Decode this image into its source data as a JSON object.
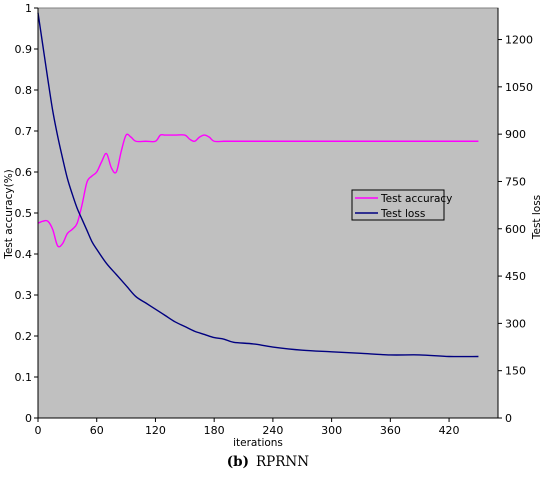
{
  "chart_data": {
    "type": "line",
    "title": "",
    "xlabel": "iterations",
    "ylabel": "Test accuracy(%)",
    "y2label": "Test loss",
    "xlim": [
      0,
      470
    ],
    "ylim": [
      0,
      1.0
    ],
    "y2lim": [
      0,
      1300
    ],
    "xticks": [
      0,
      60,
      120,
      180,
      240,
      300,
      360,
      420
    ],
    "yticks": [
      0,
      0.1,
      0.2,
      0.3,
      0.4,
      0.5,
      0.6,
      0.7,
      0.8,
      0.9,
      1
    ],
    "y2ticks": [
      0,
      150,
      300,
      450,
      600,
      750,
      900,
      1050,
      1200
    ],
    "xtick_labels": [
      "0",
      "60",
      "120",
      "180",
      "240",
      "300",
      "360",
      "420"
    ],
    "ytick_labels": [
      "0",
      "0.1",
      "0.2",
      "0.3",
      "0.4",
      "0.5",
      "0.6",
      "0.7",
      "0.8",
      "0.9",
      "1"
    ],
    "y2tick_labels": [
      "0",
      "150",
      "300",
      "450",
      "600",
      "750",
      "900",
      "1050",
      "1200"
    ],
    "grid": false,
    "background_color": "#c0c0c0",
    "legend_position": "right-middle",
    "series": [
      {
        "name": "Test accuracy",
        "axis": "left",
        "color": "#ff00ff",
        "x": [
          0,
          5,
          10,
          15,
          20,
          25,
          30,
          35,
          40,
          45,
          50,
          55,
          60,
          65,
          70,
          75,
          80,
          85,
          90,
          95,
          100,
          110,
          120,
          125,
          130,
          140,
          150,
          155,
          160,
          165,
          170,
          175,
          180,
          190,
          200,
          250,
          300,
          350,
          400,
          450
        ],
        "y": [
          0.475,
          0.48,
          0.48,
          0.46,
          0.42,
          0.425,
          0.45,
          0.46,
          0.475,
          0.52,
          0.575,
          0.59,
          0.6,
          0.625,
          0.645,
          0.61,
          0.6,
          0.65,
          0.69,
          0.685,
          0.675,
          0.675,
          0.675,
          0.69,
          0.69,
          0.69,
          0.69,
          0.68,
          0.675,
          0.685,
          0.69,
          0.685,
          0.675,
          0.675,
          0.675,
          0.675,
          0.675,
          0.675,
          0.675,
          0.675
        ]
      },
      {
        "name": "Test loss",
        "axis": "right",
        "color": "#000080",
        "x": [
          0,
          5,
          10,
          15,
          20,
          25,
          30,
          35,
          40,
          45,
          50,
          55,
          60,
          70,
          80,
          90,
          100,
          110,
          120,
          130,
          140,
          150,
          160,
          170,
          180,
          190,
          200,
          220,
          240,
          270,
          300,
          330,
          360,
          390,
          420,
          450
        ],
        "y": [
          1285,
          1180,
          1075,
          975,
          895,
          825,
          760,
          710,
          665,
          630,
          595,
          560,
          535,
          490,
          455,
          420,
          385,
          365,
          345,
          325,
          305,
          290,
          275,
          265,
          255,
          250,
          240,
          235,
          225,
          215,
          210,
          205,
          200,
          200,
          195,
          195
        ]
      }
    ]
  },
  "legend": {
    "items": [
      "Test accuracy",
      "Test loss"
    ]
  },
  "caption": {
    "label": "(b)",
    "text": "RPRNN"
  }
}
